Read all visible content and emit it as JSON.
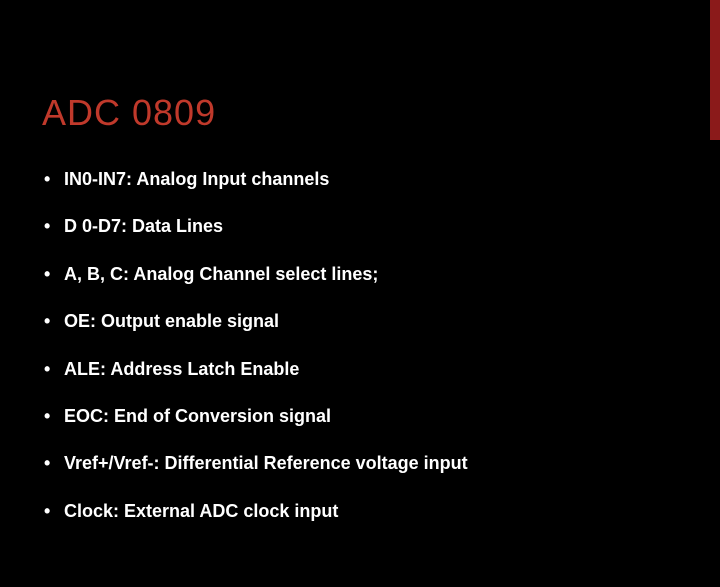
{
  "slide": {
    "title": "ADC 0809",
    "title_color": "#c0392b",
    "background_color": "#000000",
    "accent_bar_color": "#8b1a1a",
    "text_color": "#ffffff",
    "title_fontsize": 36,
    "body_fontsize": 18,
    "bullets": [
      "IN0-IN7:  Analog Input channels",
      "D 0-D7:  Data Lines",
      "A, B, C:  Analog Channel select lines;",
      "OE:  Output enable signal",
      "ALE:  Address Latch Enable",
      "EOC:  End of Conversion signal",
      "Vref+/Vref-:  Differential Reference voltage input",
      "Clock:  External ADC clock input"
    ]
  }
}
